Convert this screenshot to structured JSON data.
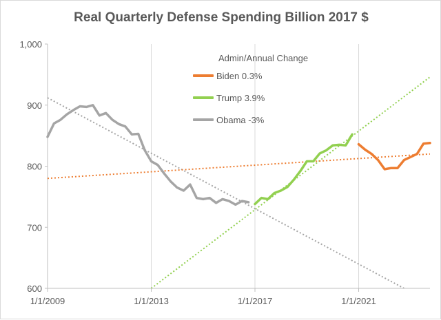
{
  "chart_data": {
    "type": "line",
    "title": "Real Quarterly Defense Spending Billion 2017 $",
    "xlabel": "",
    "ylabel": "",
    "xlim": [
      2009.0,
      2023.75
    ],
    "ylim": [
      600,
      1000
    ],
    "x_ticks": [
      "1/1/2009",
      "1/1/2013",
      "1/1/2017",
      "1/1/2021"
    ],
    "y_ticks": [
      "600",
      "700",
      "800",
      "900",
      "1,000"
    ],
    "grid": "vertical",
    "legend": {
      "position": "top-right",
      "title": "Admin/Annual Change",
      "entries": [
        "Biden 0.3%",
        "Trump 3.9%",
        "Obama -3%"
      ]
    },
    "colors": {
      "Biden": "#ed7d31",
      "Trump": "#92d050",
      "Obama": "#a5a5a5"
    },
    "series": [
      {
        "name": "Obama -3%",
        "color": "#a5a5a5",
        "x": [
          2009.0,
          2009.25,
          2009.5,
          2009.75,
          2010.0,
          2010.25,
          2010.5,
          2010.75,
          2011.0,
          2011.25,
          2011.5,
          2011.75,
          2012.0,
          2012.25,
          2012.5,
          2012.75,
          2013.0,
          2013.25,
          2013.5,
          2013.75,
          2014.0,
          2014.25,
          2014.5,
          2014.75,
          2015.0,
          2015.25,
          2015.5,
          2015.75,
          2016.0,
          2016.25,
          2016.5,
          2016.75
        ],
        "values": [
          848,
          870,
          876,
          885,
          892,
          898,
          897,
          900,
          883,
          887,
          876,
          869,
          865,
          852,
          853,
          826,
          808,
          802,
          788,
          775,
          765,
          760,
          770,
          748,
          746,
          748,
          740,
          746,
          743,
          737,
          743,
          741
        ]
      },
      {
        "name": "Trump 3.9%",
        "color": "#92d050",
        "x": [
          2017.0,
          2017.25,
          2017.5,
          2017.75,
          2018.0,
          2018.25,
          2018.5,
          2018.75,
          2019.0,
          2019.25,
          2019.5,
          2019.75,
          2020.0,
          2020.25,
          2020.5,
          2020.75
        ],
        "values": [
          738,
          748,
          746,
          756,
          760,
          766,
          778,
          792,
          808,
          808,
          821,
          826,
          834,
          835,
          834,
          852
        ]
      },
      {
        "name": "Biden 0.3%",
        "color": "#ed7d31",
        "x": [
          2021.0,
          2021.25,
          2021.5,
          2021.75,
          2022.0,
          2022.25,
          2022.5,
          2022.75,
          2023.0,
          2023.25,
          2023.5,
          2023.75
        ],
        "values": [
          836,
          827,
          820,
          810,
          795,
          797,
          797,
          810,
          815,
          820,
          837,
          838
        ]
      }
    ],
    "trendlines": [
      {
        "series": "Obama -3%",
        "color": "#a5a5a5",
        "x": [
          2009.0,
          2022.75
        ],
        "values": [
          912,
          600
        ]
      },
      {
        "series": "Trump 3.9%",
        "color": "#92d050",
        "x": [
          2013.0,
          2023.75
        ],
        "values": [
          600,
          946
        ]
      },
      {
        "series": "Biden 0.3%",
        "color": "#ed7d31",
        "x": [
          2009.0,
          2023.75
        ],
        "values": [
          780,
          820
        ]
      }
    ]
  }
}
